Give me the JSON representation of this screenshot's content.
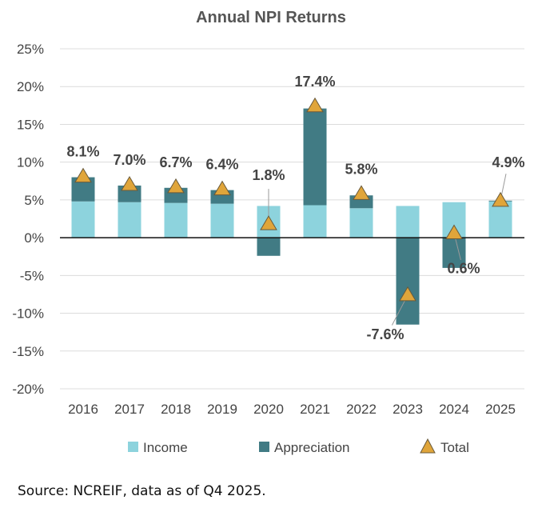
{
  "chart_data": {
    "type": "bar",
    "stacked": true,
    "title": "Annual NPI Returns",
    "categories": [
      "2016",
      "2017",
      "2018",
      "2019",
      "2020",
      "2021",
      "2022",
      "2023",
      "2024",
      "2025"
    ],
    "series": [
      {
        "name": "Income",
        "type": "bar",
        "color": "#8dd3dd",
        "values": [
          4.8,
          4.7,
          4.6,
          4.5,
          4.2,
          4.3,
          3.9,
          4.2,
          4.7,
          4.8
        ]
      },
      {
        "name": "Appreciation",
        "type": "bar",
        "color": "#417b84",
        "values": [
          3.2,
          2.2,
          2.0,
          1.8,
          -2.4,
          12.8,
          1.7,
          -11.5,
          -4.0,
          0.1
        ]
      },
      {
        "name": "Total",
        "type": "marker",
        "marker": "triangle",
        "color": "#e0a53a",
        "values": [
          8.1,
          7.0,
          6.7,
          6.4,
          1.8,
          17.4,
          5.8,
          -7.6,
          0.6,
          4.9
        ],
        "labels": [
          "8.1%",
          "7.0%",
          "6.7%",
          "6.4%",
          "1.8%",
          "17.4%",
          "5.8%",
          "-7.6%",
          "0.6%",
          "4.9%"
        ]
      }
    ],
    "yticks": [
      "25%",
      "20%",
      "15%",
      "10%",
      "5%",
      "0%",
      "-5%",
      "-10%",
      "-15%",
      "-20%"
    ],
    "ylim": [
      -20,
      25
    ],
    "grid": true,
    "legend": "bottom"
  },
  "source": "Source: NCREIF, data as of Q4 2025."
}
